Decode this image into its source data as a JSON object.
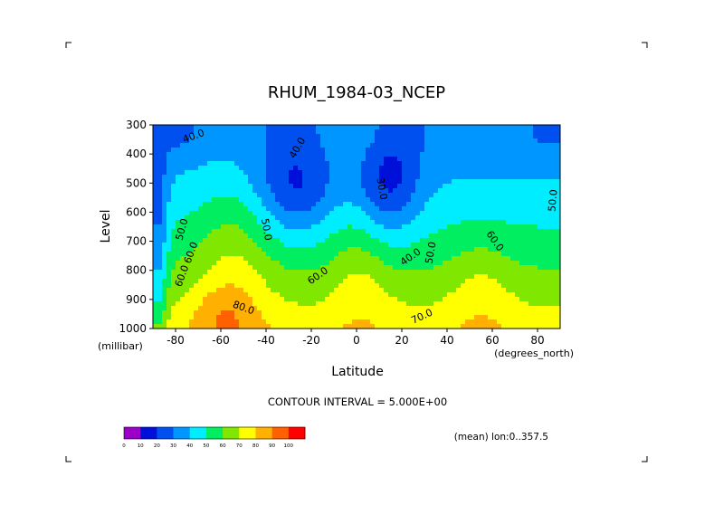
{
  "chart_data": {
    "type": "contour",
    "title": "RHUM_1984-03_NCEP",
    "xlabel": "Latitude",
    "ylabel": "Level",
    "x_unit_label": "(degrees_north)",
    "y_unit_label": "(millibar)",
    "xlim": [
      -90,
      90
    ],
    "ylim": [
      1000,
      300
    ],
    "x_ticks": [
      -80,
      -60,
      -40,
      -20,
      0,
      20,
      40,
      60,
      80
    ],
    "x_tick_labels": [
      "-80",
      "-60",
      "-40",
      "-20",
      "0",
      "20",
      "40",
      "60",
      "80"
    ],
    "y_ticks": [
      300,
      400,
      500,
      600,
      700,
      800,
      900,
      1000
    ],
    "y_tick_labels": [
      "300",
      "400",
      "500",
      "600",
      "700",
      "800",
      "900",
      "1000"
    ],
    "contour_interval_text": "CONTOUR INTERVAL = 5.000E+00",
    "mean_note": "(mean) lon:0..357.5",
    "contour_labels": [
      {
        "text": "40.0",
        "lat": -72,
        "lev": 340,
        "angle": -20
      },
      {
        "text": "40.0",
        "lat": -26,
        "lev": 380,
        "angle": -60
      },
      {
        "text": "50.0",
        "lat": -77,
        "lev": 660,
        "angle": -75
      },
      {
        "text": "60.0",
        "lat": -73,
        "lev": 740,
        "angle": -70
      },
      {
        "text": "60.0",
        "lat": -77,
        "lev": 820,
        "angle": -70
      },
      {
        "text": "50.0",
        "lat": -40,
        "lev": 660,
        "angle": 80
      },
      {
        "text": "60.0",
        "lat": -17,
        "lev": 820,
        "angle": -35
      },
      {
        "text": "80.0",
        "lat": -50,
        "lev": 930,
        "angle": 20
      },
      {
        "text": "30.0",
        "lat": 11,
        "lev": 520,
        "angle": 80
      },
      {
        "text": "40.0",
        "lat": 24,
        "lev": 755,
        "angle": -35
      },
      {
        "text": "50.0",
        "lat": 33,
        "lev": 740,
        "angle": -80
      },
      {
        "text": "70.0",
        "lat": 29,
        "lev": 960,
        "angle": -25
      },
      {
        "text": "60.0",
        "lat": 61,
        "lev": 700,
        "angle": 55
      },
      {
        "text": "50.0",
        "lat": 87,
        "lev": 560,
        "angle": -85
      }
    ],
    "colorbar": {
      "boundaries": [
        0,
        10,
        20,
        30,
        40,
        50,
        60,
        70,
        80,
        90,
        100
      ],
      "colors": [
        "#9a00c8",
        "#0010d8",
        "#0050f0",
        "#0096ff",
        "#00ecff",
        "#00ee60",
        "#80e800",
        "#ffff00",
        "#ffb000",
        "#ff6000",
        "#ff0000"
      ]
    }
  }
}
